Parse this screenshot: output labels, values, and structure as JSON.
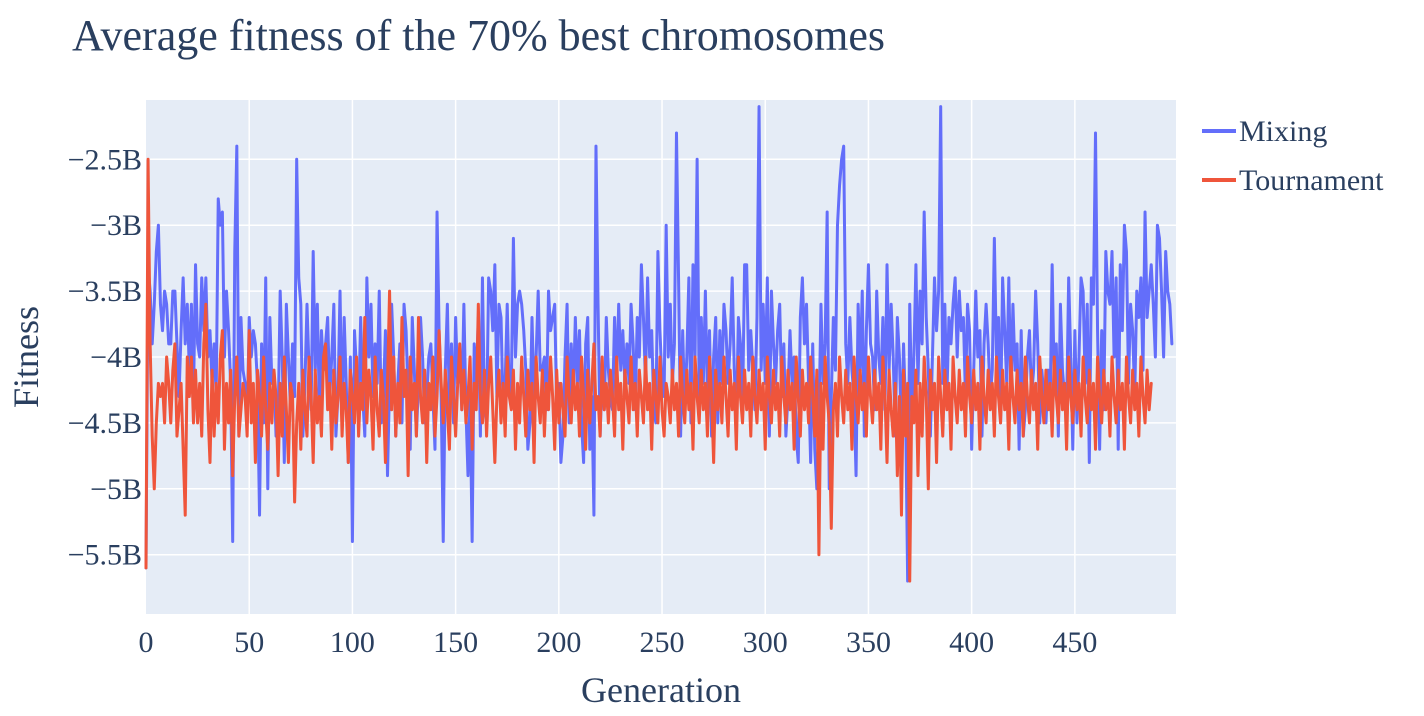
{
  "chart_data": {
    "type": "line",
    "title": "Average fitness of the 70% best chromosomes",
    "xlabel": "Generation",
    "ylabel": "Fitness",
    "xlim": [
      0,
      499
    ],
    "ylim": [
      -5950000000.0,
      -2050000000.0
    ],
    "grid": true,
    "legend_placement": "top-right outside",
    "x_ticks": [
      0,
      50,
      100,
      150,
      200,
      250,
      300,
      350,
      400,
      450
    ],
    "x_tick_labels": [
      "0",
      "50",
      "100",
      "150",
      "200",
      "250",
      "300",
      "350",
      "400",
      "450"
    ],
    "y_ticks": [
      -2500000000.0,
      -3000000000.0,
      -3500000000.0,
      -4000000000.0,
      -4500000000.0,
      -5000000000.0,
      -5500000000.0
    ],
    "y_tick_labels": [
      "−2.5B",
      "−3B",
      "−3.5B",
      "−4B",
      "−4.5B",
      "−5B",
      "−5.5B"
    ],
    "series": [
      {
        "name": "Mixing",
        "color": "#636efa",
        "x_start": 0,
        "values": [
          -5.6,
          -3.3,
          -3.5,
          -3.9,
          -3.6,
          -3.2,
          -3.0,
          -3.6,
          -3.8,
          -3.5,
          -3.6,
          -3.9,
          -3.9,
          -3.5,
          -3.5,
          -3.9,
          -4.3,
          -3.8,
          -3.4,
          -3.9,
          -3.6,
          -4.1,
          -3.6,
          -4.3,
          -3.3,
          -3.9,
          -4.0,
          -3.4,
          -3.8,
          -3.4,
          -4.0,
          -3.8,
          -4.2,
          -3.9,
          -4.3,
          -2.8,
          -3.0,
          -2.9,
          -4.0,
          -3.5,
          -3.8,
          -4.2,
          -5.4,
          -3.2,
          -2.4,
          -4.6,
          -3.7,
          -4.1,
          -4.2,
          -4.5,
          -3.7,
          -4.0,
          -3.8,
          -3.9,
          -4.2,
          -5.2,
          -3.9,
          -4.5,
          -3.4,
          -5.0,
          -3.7,
          -4.2,
          -4.1,
          -4.6,
          -4.5,
          -3.5,
          -4.0,
          -4.8,
          -3.6,
          -4.0,
          -4.4,
          -3.9,
          -4.3,
          -2.5,
          -3.4,
          -3.6,
          -4.6,
          -4.2,
          -3.6,
          -4.1,
          -4.4,
          -3.2,
          -4.1,
          -3.6,
          -4.4,
          -3.8,
          -4.1,
          -3.9,
          -3.7,
          -4.3,
          -4.0,
          -3.6,
          -4.6,
          -4.3,
          -3.5,
          -4.5,
          -3.7,
          -4.2,
          -4.8,
          -4.0,
          -5.4,
          -3.8,
          -4.1,
          -4.4,
          -3.7,
          -4.3,
          -4.6,
          -3.4,
          -4.0,
          -3.6,
          -4.3,
          -3.9,
          -4.2,
          -3.5,
          -4.5,
          -4.3,
          -3.8,
          -4.9,
          -4.2,
          -3.6,
          -4.0,
          -4.6,
          -4.2,
          -3.9,
          -4.5,
          -3.6,
          -3.8,
          -4.3,
          -4.7,
          -3.7,
          -4.1,
          -4.6,
          -4.2,
          -3.7,
          -4.0,
          -4.5,
          -4.3,
          -4.0,
          -3.9,
          -4.3,
          -4.7,
          -2.9,
          -3.8,
          -4.3,
          -5.4,
          -4.1,
          -3.6,
          -4.4,
          -3.9,
          -4.5,
          -3.7,
          -4.2,
          -4.0,
          -4.4,
          -3.6,
          -4.4,
          -4.9,
          -4.3,
          -5.4,
          -3.9,
          -4.2,
          -3.7,
          -4.6,
          -3.4,
          -4.4,
          -4.5,
          -3.4,
          -3.5,
          -3.8,
          -3.3,
          -4.3,
          -3.6,
          -3.7,
          -4.4,
          -4.2,
          -3.6,
          -4.3,
          -4.2,
          -3.1,
          -4.0,
          -3.6,
          -3.5,
          -3.6,
          -3.8,
          -4.1,
          -4.7,
          -4.5,
          -3.7,
          -4.3,
          -4.0,
          -3.5,
          -4.1,
          -4.1,
          -4.0,
          -4.4,
          -3.5,
          -3.8,
          -3.7,
          -3.6,
          -4.4,
          -4.2,
          -4.8,
          -4.6,
          -4.0,
          -3.6,
          -4.5,
          -3.9,
          -4.3,
          -3.7,
          -4.2,
          -3.8,
          -4.5,
          -4.8,
          -3.9,
          -3.7,
          -4.7,
          -4.3,
          -5.2,
          -2.4,
          -3.6,
          -4.6,
          -4.1,
          -4.4,
          -3.7,
          -4.1,
          -4.3,
          -4.4,
          -3.7,
          -4.2,
          -3.6,
          -4.1,
          -3.8,
          -4.2,
          -3.9,
          -4.2,
          -3.6,
          -3.9,
          -4.4,
          -3.7,
          -4.0,
          -3.3,
          -3.7,
          -4.2,
          -3.4,
          -4.0,
          -3.8,
          -4.4,
          -4.5,
          -3.2,
          -3.8,
          -4.2,
          -4.3,
          -3.0,
          -4.0,
          -3.6,
          -4.2,
          -3.9,
          -2.3,
          -3.4,
          -4.6,
          -3.8,
          -4.4,
          -4.0,
          -3.4,
          -4.5,
          -3.3,
          -4.0,
          -2.5,
          -4.3,
          -3.7,
          -4.2,
          -3.5,
          -4.3,
          -3.8,
          -4.6,
          -4.0,
          -3.7,
          -4.5,
          -3.8,
          -4.2,
          -3.6,
          -3.8,
          -4.2,
          -3.9,
          -3.4,
          -4.1,
          -4.5,
          -3.7,
          -3.9,
          -4.4,
          -3.3,
          -3.3,
          -4.1,
          -3.8,
          -4.1,
          -4.4,
          -3.7,
          -2.1,
          -4.1,
          -3.6,
          -4.2,
          -3.4,
          -4.6,
          -3.5,
          -3.9,
          -4.2,
          -3.8,
          -3.6,
          -4.3,
          -3.9,
          -4.6,
          -4.3,
          -3.8,
          -4.2,
          -4.0,
          -4.6,
          -4.8,
          -3.7,
          -3.4,
          -3.9,
          -3.6,
          -4.2,
          -4.8,
          -3.9,
          -4.7,
          -5.0,
          -4.5,
          -3.6,
          -4.2,
          -3.9,
          -2.9,
          -5.0,
          -4.3,
          -3.7,
          -4.1,
          -3.0,
          -2.7,
          -2.5,
          -2.4,
          -3.9,
          -4.2,
          -3.7,
          -4.1,
          -4.3,
          -4.9,
          -3.6,
          -4.1,
          -3.5,
          -4.6,
          -3.8,
          -3.3,
          -3.9,
          -4.0,
          -4.4,
          -3.5,
          -4.0,
          -4.2,
          -3.7,
          -4.4,
          -3.3,
          -4.1,
          -3.6,
          -4.0,
          -4.6,
          -3.7,
          -4.0,
          -4.6,
          -3.9,
          -4.4,
          -5.7,
          -3.6,
          -4.4,
          -4.0,
          -3.3,
          -4.2,
          -3.5,
          -3.9,
          -2.9,
          -3.7,
          -4.1,
          -4.6,
          -4.0,
          -3.4,
          -3.8,
          -3.5,
          -2.1,
          -4.2,
          -3.6,
          -4.3,
          -3.7,
          -3.9,
          -3.6,
          -3.4,
          -4.0,
          -3.5,
          -3.8,
          -3.7,
          -4.3,
          -3.6,
          -3.8,
          -4.7,
          -4.1,
          -3.5,
          -4.0,
          -3.8,
          -4.6,
          -3.9,
          -3.6,
          -3.9,
          -4.3,
          -4.1,
          -3.1,
          -4.0,
          -3.7,
          -4.5,
          -3.4,
          -3.8,
          -4.2,
          -3.4,
          -4.3,
          -3.6,
          -4.1,
          -3.9,
          -4.7,
          -3.8,
          -4.6,
          -4.4,
          -4.0,
          -3.8,
          -4.3,
          -4.1,
          -3.5,
          -3.9,
          -4.5,
          -4.1,
          -4.3,
          -4.5,
          -4.1,
          -4.4,
          -3.3,
          -4.2,
          -3.9,
          -4.6,
          -3.6,
          -4.1,
          -4.3,
          -4.4,
          -3.4,
          -4.0,
          -4.7,
          -3.8,
          -4.5,
          -4.0,
          -3.4,
          -3.5,
          -4.2,
          -3.6,
          -4.8,
          -3.4,
          -3.6,
          -2.3,
          -3.8,
          -4.7,
          -3.8,
          -4.4,
          -3.2,
          -3.5,
          -3.6,
          -3.2,
          -4.0,
          -3.4,
          -4.7,
          -3.3,
          -3.8,
          -3.0,
          -3.2,
          -4.2,
          -3.6,
          -3.8,
          -4.3,
          -3.5,
          -3.7,
          -3.4,
          -4.1,
          -2.9,
          -3.7,
          -3.5,
          -3.3,
          -3.6,
          -4.0,
          -3.0,
          -3.1,
          -3.5,
          -4.0,
          -3.2,
          -3.5,
          -3.6,
          -3.9
        ]
      },
      {
        "name": "Tournament",
        "color": "#ef553b",
        "x_start": 0,
        "values": [
          -5.6,
          -2.5,
          -3.9,
          -4.6,
          -5.0,
          -4.5,
          -4.2,
          -4.3,
          -4.2,
          -4.5,
          -4.0,
          -4.2,
          -4.5,
          -4.1,
          -3.9,
          -4.6,
          -4.4,
          -4.2,
          -4.7,
          -5.2,
          -4.0,
          -4.3,
          -4.0,
          -4.5,
          -4.1,
          -4.5,
          -4.2,
          -4.6,
          -3.9,
          -3.6,
          -4.4,
          -4.8,
          -4.1,
          -4.6,
          -4.2,
          -4.5,
          -4.0,
          -3.8,
          -4.7,
          -4.2,
          -4.5,
          -4.1,
          -4.9,
          -4.3,
          -4.0,
          -4.6,
          -4.4,
          -4.2,
          -4.3,
          -4.6,
          -3.8,
          -4.5,
          -4.2,
          -4.8,
          -4.1,
          -4.3,
          -4.6,
          -4.0,
          -4.4,
          -4.7,
          -4.2,
          -4.5,
          -4.1,
          -4.3,
          -4.9,
          -4.2,
          -4.6,
          -4.0,
          -4.4,
          -4.8,
          -4.2,
          -4.3,
          -5.1,
          -4.5,
          -4.2,
          -4.7,
          -4.1,
          -4.4,
          -4.6,
          -4.0,
          -4.3,
          -4.8,
          -4.1,
          -4.5,
          -4.3,
          -4.6,
          -4.0,
          -3.9,
          -4.4,
          -4.2,
          -4.7,
          -4.1,
          -4.5,
          -4.3,
          -4.0,
          -4.6,
          -4.2,
          -4.4,
          -4.8,
          -4.1,
          -4.3,
          -4.5,
          -4.0,
          -4.6,
          -4.2,
          -4.4,
          -3.7,
          -4.5,
          -4.1,
          -4.3,
          -4.7,
          -4.0,
          -4.4,
          -4.6,
          -4.1,
          -4.3,
          -4.8,
          -4.2,
          -3.5,
          -4.4,
          -4.0,
          -4.6,
          -4.2,
          -4.5,
          -3.7,
          -4.3,
          -4.1,
          -4.9,
          -4.0,
          -4.4,
          -4.2,
          -4.6,
          -3.7,
          -4.3,
          -4.5,
          -4.1,
          -4.8,
          -4.2,
          -4.4,
          -4.0,
          -4.6,
          -4.3,
          -3.8,
          -4.2,
          -4.5,
          -4.1,
          -4.4,
          -4.7,
          -4.0,
          -4.3,
          -4.6,
          -4.2,
          -3.9,
          -4.4,
          -4.1,
          -4.5,
          -4.3,
          -4.0,
          -4.7,
          -4.2,
          -4.4,
          -3.6,
          -4.3,
          -4.5,
          -4.1,
          -4.6,
          -4.2,
          -4.0,
          -4.4,
          -4.8,
          -4.3,
          -4.1,
          -4.5,
          -4.2,
          -4.6,
          -4.0,
          -4.3,
          -4.4,
          -4.1,
          -4.7,
          -4.2,
          -4.5,
          -4.0,
          -4.3,
          -4.6,
          -4.1,
          -4.4,
          -4.2,
          -4.8,
          -4.0,
          -4.3,
          -4.5,
          -4.1,
          -4.6,
          -4.2,
          -4.4,
          -4.0,
          -4.3,
          -4.7,
          -4.1,
          -4.5,
          -4.2,
          -4.4,
          -4.6,
          -4.0,
          -4.3,
          -4.5,
          -4.1,
          -4.4,
          -4.2,
          -4.6,
          -4.0,
          -4.3,
          -4.7,
          -4.1,
          -4.5,
          -4.2,
          -3.9,
          -4.4,
          -4.3,
          -4.6,
          -4.0,
          -4.4,
          -4.2,
          -4.5,
          -4.1,
          -4.3,
          -4.6,
          -4.0,
          -4.4,
          -4.2,
          -4.7,
          -4.1,
          -4.3,
          -4.5,
          -4.0,
          -4.4,
          -4.2,
          -4.6,
          -4.1,
          -4.3,
          -4.5,
          -4.0,
          -4.4,
          -4.2,
          -4.7,
          -4.1,
          -4.3,
          -4.5,
          -4.0,
          -4.4,
          -4.6,
          -4.2,
          -4.3,
          -4.5,
          -4.1,
          -4.4,
          -4.2,
          -4.6,
          -4.0,
          -4.3,
          -4.5,
          -4.1,
          -4.4,
          -4.2,
          -4.7,
          -4.0,
          -4.3,
          -4.5,
          -4.1,
          -4.4,
          -4.2,
          -4.6,
          -4.0,
          -4.3,
          -4.8,
          -4.1,
          -4.4,
          -4.2,
          -4.5,
          -4.0,
          -4.3,
          -4.6,
          -4.1,
          -4.4,
          -4.2,
          -4.7,
          -4.0,
          -4.3,
          -4.5,
          -4.1,
          -4.4,
          -4.2,
          -4.6,
          -4.0,
          -4.3,
          -4.5,
          -4.1,
          -4.4,
          -4.2,
          -4.7,
          -4.0,
          -4.3,
          -4.5,
          -4.1,
          -4.4,
          -4.2,
          -4.6,
          -4.0,
          -4.3,
          -4.5,
          -4.1,
          -4.4,
          -4.2,
          -4.7,
          -4.0,
          -4.3,
          -4.6,
          -4.1,
          -4.4,
          -4.2,
          -4.5,
          -4.0,
          -4.3,
          -4.6,
          -4.1,
          -5.5,
          -4.2,
          -4.7,
          -4.0,
          -4.3,
          -4.5,
          -5.3,
          -4.4,
          -4.2,
          -4.6,
          -4.0,
          -4.3,
          -4.5,
          -4.1,
          -4.4,
          -4.2,
          -4.7,
          -4.0,
          -4.3,
          -4.5,
          -4.1,
          -4.4,
          -4.2,
          -4.6,
          -4.0,
          -4.3,
          -4.5,
          -4.1,
          -4.4,
          -4.2,
          -4.7,
          -4.0,
          -4.3,
          -4.8,
          -4.1,
          -4.4,
          -4.6,
          -4.2,
          -4.9,
          -4.3,
          -5.2,
          -4.1,
          -4.6,
          -4.2,
          -5.7,
          -4.3,
          -4.5,
          -4.1,
          -4.9,
          -4.2,
          -4.6,
          -4.0,
          -4.3,
          -5.0,
          -4.1,
          -4.4,
          -4.2,
          -4.8,
          -4.0,
          -4.3,
          -4.6,
          -4.1,
          -4.4,
          -4.2,
          -4.7,
          -4.0,
          -4.3,
          -4.5,
          -4.1,
          -4.4,
          -4.2,
          -4.6,
          -4.0,
          -4.3,
          -4.5,
          -4.1,
          -4.4,
          -4.2,
          -4.7,
          -4.0,
          -4.3,
          -4.5,
          -4.1,
          -4.4,
          -4.2,
          -4.6,
          -4.0,
          -4.3,
          -4.5,
          -4.1,
          -4.4,
          -4.2,
          -4.7,
          -4.0,
          -4.3,
          -4.5,
          -4.1,
          -4.4,
          -4.2,
          -4.6,
          -4.0,
          -4.3,
          -4.5,
          -4.1,
          -4.4,
          -4.2,
          -4.7,
          -4.0,
          -4.3,
          -4.5,
          -4.1,
          -4.4,
          -4.2,
          -4.6,
          -4.0,
          -4.3,
          -4.5,
          -4.1,
          -4.4,
          -4.2,
          -4.7,
          -4.0,
          -4.3,
          -4.5,
          -4.1,
          -4.4,
          -4.2,
          -4.6,
          -4.0,
          -4.3,
          -4.5,
          -4.1,
          -4.4,
          -4.2,
          -4.7,
          -4.0,
          -4.3,
          -4.5,
          -4.1,
          -4.4,
          -4.2,
          -4.6,
          -4.0,
          -4.3,
          -4.5,
          -4.1,
          -4.4,
          -4.2,
          -4.7,
          -4.0,
          -4.3,
          -4.5,
          -4.1,
          -4.4,
          -4.2,
          -4.6,
          -4.0,
          -4.3,
          -4.5,
          -4.1,
          -4.4,
          -4.2
        ]
      }
    ]
  }
}
